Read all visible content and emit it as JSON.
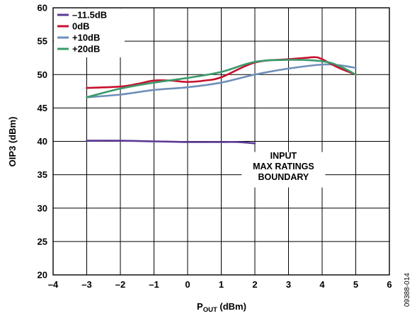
{
  "chart_data": {
    "type": "line",
    "xlabel_main": "P",
    "xlabel_sub": "OUT",
    "xlabel_unit": " (dBm)",
    "ylabel": "OIP3 (dBm)",
    "xlim": [
      -4,
      6
    ],
    "ylim": [
      20,
      60
    ],
    "xticks": [
      -4,
      -3,
      -2,
      -1,
      0,
      1,
      2,
      3,
      4,
      5,
      6
    ],
    "yticks": [
      20,
      25,
      30,
      35,
      40,
      45,
      50,
      55,
      60
    ],
    "xtick_labels": [
      "–4",
      "–3",
      "–2",
      "–1",
      "0",
      "1",
      "2",
      "3",
      "4",
      "5",
      "6"
    ],
    "ytick_labels": [
      "20",
      "25",
      "30",
      "35",
      "40",
      "45",
      "50",
      "55",
      "60"
    ],
    "grid": true,
    "legend_position": "top-left",
    "series": [
      {
        "name": "–11.5dB",
        "color": "#5b3a95",
        "x": [
          -3,
          -2,
          -1,
          0,
          1,
          1.5,
          2
        ],
        "y": [
          40.1,
          40.1,
          40.0,
          39.9,
          39.9,
          39.9,
          39.7
        ]
      },
      {
        "name": "0dB",
        "color": "#c8102e",
        "x": [
          -3,
          -2,
          -1.5,
          -1,
          -0.5,
          0,
          0.5,
          1,
          2,
          3,
          3.5,
          3.8,
          4,
          4.5,
          5
        ],
        "y": [
          48.0,
          48.2,
          48.6,
          49.1,
          49.1,
          48.9,
          49.1,
          49.6,
          51.8,
          52.3,
          52.5,
          52.6,
          52.3,
          51.0,
          50.0
        ]
      },
      {
        "name": "+10dB",
        "color": "#6f8fb8",
        "x": [
          -3,
          -2,
          -1,
          0,
          1,
          2,
          3,
          4,
          4.5,
          5
        ],
        "y": [
          46.6,
          47.0,
          47.7,
          48.1,
          48.8,
          50.0,
          50.9,
          51.5,
          51.4,
          51.0
        ]
      },
      {
        "name": "+20dB",
        "color": "#3a9a6b",
        "x": [
          -3,
          -2,
          -1,
          0,
          1,
          2,
          3,
          4,
          4.5,
          5
        ],
        "y": [
          46.6,
          47.9,
          48.8,
          49.5,
          50.4,
          51.9,
          52.2,
          52.0,
          51.3,
          50.0
        ]
      }
    ],
    "annotation": [
      "INPUT",
      "MAX RATINGS",
      "BOUNDARY"
    ],
    "figure_id": "09388-014"
  }
}
